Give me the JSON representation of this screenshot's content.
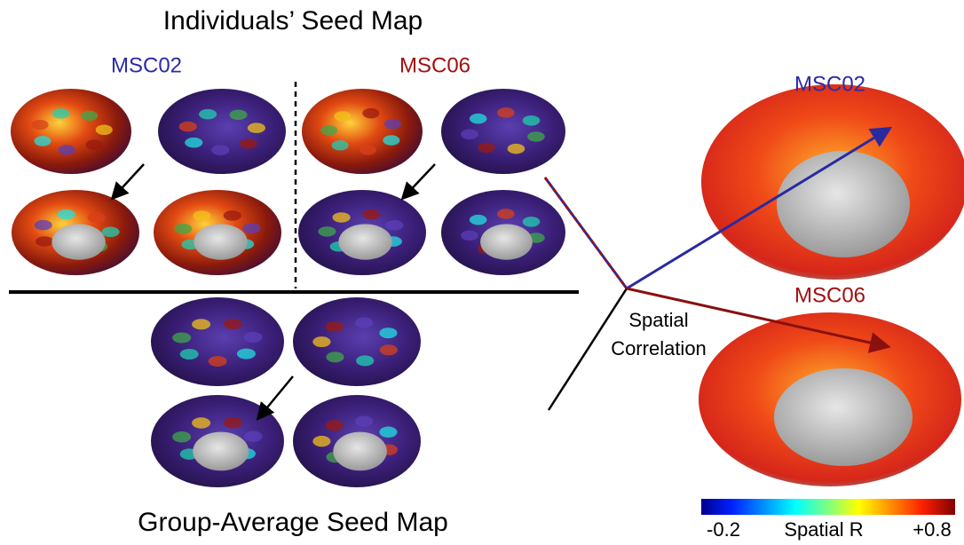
{
  "left_panel": {
    "title": "Individuals’ Seed Map",
    "subjects": [
      "MSC02",
      "MSC06"
    ],
    "group_title": "Group-Average Seed Map"
  },
  "right_panel": {
    "subjects": [
      "MSC02",
      "MSC06"
    ],
    "link_label": [
      "Spatial",
      "Correlation"
    ]
  },
  "colorbar": {
    "min_label": "-0.2",
    "title": "Spatial R",
    "max_label": "+0.8"
  }
}
